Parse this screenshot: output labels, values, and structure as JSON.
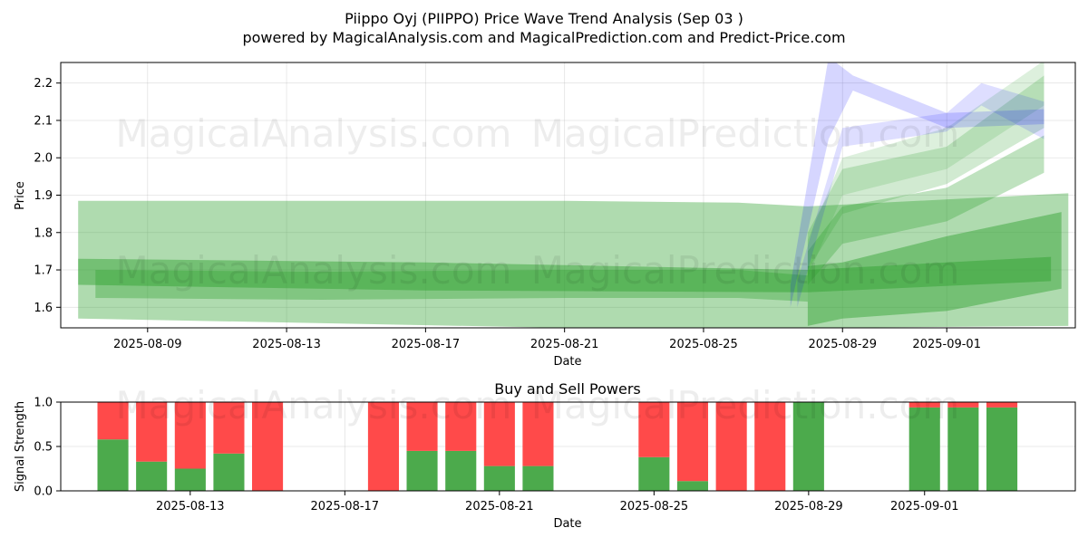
{
  "title": "Piippo Oyj (PIIPPO) Price Wave Trend Analysis (Sep 03 )",
  "subtitle": "powered by MagicalAnalysis.com and MagicalPrediction.com and Predict-Price.com",
  "watermarks": [
    "MagicalAnalysis.com",
    "MagicalPrediction.com"
  ],
  "colors": {
    "green_band": "#2ca02c",
    "blue_band": "#0000ff",
    "buy": "#4caa4c",
    "sell": "#ff4a4a",
    "grid": "#b0b0b0"
  },
  "chart_data": [
    {
      "type": "area",
      "name": "price-wave",
      "xlabel": "Date",
      "ylabel": "Price",
      "xlim": [
        "2025-08-06.5",
        "2025-09-04.7"
      ],
      "ylim": [
        1.545,
        2.255
      ],
      "x_ticks": [
        "2025-08-09",
        "2025-08-13",
        "2025-08-17",
        "2025-08-21",
        "2025-08-25",
        "2025-08-29",
        "2025-09-01"
      ],
      "y_ticks": [
        1.6,
        1.7,
        1.8,
        1.9,
        2.0,
        2.1,
        2.2
      ],
      "grid": true,
      "bands": [
        {
          "color": "green",
          "opacity": 0.38,
          "x": [
            "2025-08-07",
            "2025-08-21",
            "2025-08-26",
            "2025-08-28",
            "2025-09-04.5"
          ],
          "upper": [
            1.885,
            1.885,
            1.88,
            1.87,
            1.905
          ],
          "lower": [
            1.57,
            1.545,
            1.54,
            1.545,
            1.55
          ]
        },
        {
          "color": "green",
          "opacity": 0.45,
          "x": [
            "2025-08-07",
            "2025-08-17",
            "2025-08-28",
            "2025-09-04"
          ],
          "upper": [
            1.73,
            1.72,
            1.7,
            1.735
          ],
          "lower": [
            1.66,
            1.645,
            1.64,
            1.67
          ]
        },
        {
          "color": "green",
          "opacity": 0.45,
          "x": [
            "2025-08-28",
            "2025-08-29",
            "2025-09-01",
            "2025-09-04.3"
          ],
          "upper": [
            1.71,
            1.72,
            1.79,
            1.855
          ],
          "lower": [
            1.55,
            1.57,
            1.59,
            1.65
          ]
        },
        {
          "color": "green",
          "opacity": 0.35,
          "x": [
            "2025-08-07.5",
            "2025-08-14",
            "2025-08-21",
            "2025-08-26",
            "2025-08-28"
          ],
          "upper": [
            1.7,
            1.695,
            1.7,
            1.7,
            1.685
          ],
          "lower": [
            1.625,
            1.62,
            1.625,
            1.625,
            1.615
          ]
        },
        {
          "color": "green",
          "opacity": 0.3,
          "x": [
            "2025-08-28",
            "2025-08-29",
            "2025-09-01",
            "2025-09-03.8"
          ],
          "upper": [
            1.75,
            1.87,
            1.92,
            2.06
          ],
          "lower": [
            1.66,
            1.77,
            1.83,
            1.96
          ]
        },
        {
          "color": "green",
          "opacity": 0.22,
          "x": [
            "2025-08-28",
            "2025-08-29",
            "2025-09-01",
            "2025-09-03.8"
          ],
          "upper": [
            1.8,
            1.97,
            2.03,
            2.22
          ],
          "lower": [
            1.7,
            1.85,
            1.93,
            2.08
          ]
        },
        {
          "color": "green",
          "opacity": 0.16,
          "x": [
            "2025-08-28",
            "2025-08-29",
            "2025-09-01",
            "2025-09-03.8"
          ],
          "upper": [
            1.78,
            2.0,
            2.08,
            2.26
          ],
          "lower": [
            1.68,
            1.9,
            1.97,
            2.14
          ]
        },
        {
          "color": "blue",
          "opacity": 0.16,
          "x": [
            "2025-08-27.5",
            "2025-08-28.6",
            "2025-08-29.3",
            "2025-09-01",
            "2025-09-03.8"
          ],
          "upper": [
            1.66,
            2.27,
            2.22,
            2.12,
            2.13
          ],
          "lower": [
            1.6,
            2.05,
            2.18,
            2.08,
            2.09
          ]
        },
        {
          "color": "blue",
          "opacity": 0.13,
          "x": [
            "2025-08-27.7",
            "2025-08-29",
            "2025-09-01",
            "2025-09-02",
            "2025-09-03.8"
          ],
          "upper": [
            1.67,
            2.08,
            2.12,
            2.2,
            2.15
          ],
          "lower": [
            1.6,
            2.03,
            2.07,
            2.14,
            2.05
          ]
        }
      ]
    },
    {
      "type": "bar",
      "name": "buy-sell-powers",
      "title": "Buy and Sell Powers",
      "xlabel": "Date",
      "ylabel": "Signal Strength",
      "ylim": [
        0,
        1.0
      ],
      "y_ticks": [
        0.0,
        0.5,
        1.0
      ],
      "x_ticks": [
        "2025-08-13",
        "2025-08-17",
        "2025-08-21",
        "2025-08-25",
        "2025-08-29",
        "2025-09-01"
      ],
      "grid": true,
      "dates": [
        "2025-08-11",
        "2025-08-12",
        "2025-08-13",
        "2025-08-14",
        "2025-08-15",
        "2025-08-18",
        "2025-08-19",
        "2025-08-20",
        "2025-08-21",
        "2025-08-22",
        "2025-08-25",
        "2025-08-26",
        "2025-08-27",
        "2025-08-28",
        "2025-08-29",
        "2025-09-01",
        "2025-09-02",
        "2025-09-03"
      ],
      "series": [
        {
          "name": "Buy",
          "values": [
            0.58,
            0.33,
            0.25,
            0.42,
            0.0,
            0.0,
            0.45,
            0.45,
            0.28,
            0.28,
            0.38,
            0.11,
            0.0,
            0.0,
            1.0,
            0.94,
            0.94,
            0.94
          ]
        },
        {
          "name": "Sell",
          "values": [
            0.42,
            0.67,
            0.75,
            0.58,
            1.0,
            1.0,
            0.55,
            0.55,
            0.72,
            0.72,
            0.62,
            0.89,
            1.0,
            1.0,
            0.0,
            0.06,
            0.06,
            0.06
          ]
        }
      ]
    }
  ]
}
